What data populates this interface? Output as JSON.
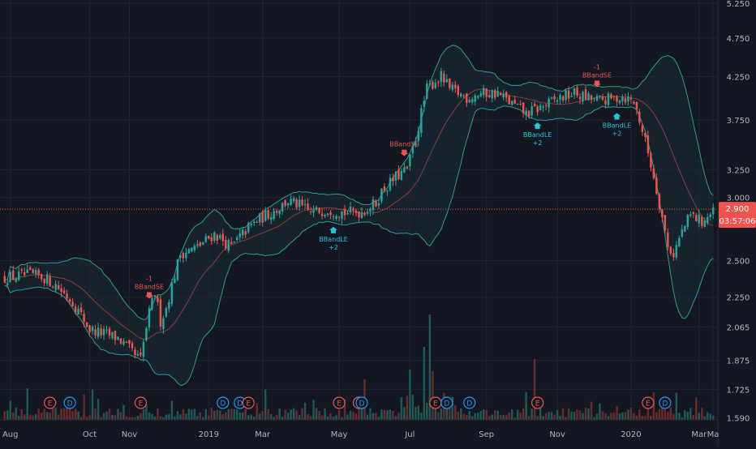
{
  "colors": {
    "background": "#131722",
    "grid": "#1f2535",
    "candle_up": "#26a69a",
    "candle_down": "#ef5350",
    "band": "#2a9d8f",
    "band_fill": "#1a2a30",
    "basis": "#8b3b3b",
    "price_line": "#ef5350",
    "label_text": "#b2b5be",
    "volume_up": "#1e5a55",
    "volume_down": "#6b2a2a",
    "earnings": "#ef5350",
    "dividend": "#2196f3",
    "signal_short": "#ef5350",
    "signal_long": "#26c6da"
  },
  "chart_data": {
    "type": "candlestick",
    "y_scale": "log",
    "ylim": [
      1.58,
      5.3
    ],
    "y_ticks": [
      "5.250",
      "4.750",
      "4.250",
      "3.750",
      "3.250",
      "3.000",
      "2.500",
      "2.250",
      "2.065",
      "1.875",
      "1.725",
      "1.590"
    ],
    "x_ticks": [
      "Aug",
      "Oct",
      "Nov",
      "2019",
      "Mar",
      "May",
      "Jul",
      "Sep",
      "Nov",
      "2020",
      "Mar",
      "Ma"
    ],
    "current_price": "2.900",
    "countdown": "03:57:06",
    "closes_knots": [
      [
        0,
        2.38
      ],
      [
        9,
        2.4
      ],
      [
        14,
        2.38
      ],
      [
        18,
        2.33
      ],
      [
        24,
        2.22
      ],
      [
        30,
        2.05
      ],
      [
        36,
        2.02
      ],
      [
        40,
        2.0
      ],
      [
        46,
        1.9
      ],
      [
        48,
        1.88
      ],
      [
        51,
        2.15
      ],
      [
        53,
        2.28
      ],
      [
        55,
        2.1
      ],
      [
        57,
        2.18
      ],
      [
        62,
        2.55
      ],
      [
        68,
        2.6
      ],
      [
        74,
        2.7
      ],
      [
        80,
        2.6
      ],
      [
        86,
        2.75
      ],
      [
        90,
        2.82
      ],
      [
        96,
        2.9
      ],
      [
        100,
        2.97
      ],
      [
        104,
        2.93
      ],
      [
        108,
        2.87
      ],
      [
        114,
        2.9
      ],
      [
        120,
        2.87
      ],
      [
        126,
        2.88
      ],
      [
        131,
        2.95
      ],
      [
        133,
        3.05
      ],
      [
        138,
        3.18
      ],
      [
        142,
        3.25
      ],
      [
        145,
        3.55
      ],
      [
        149,
        4.1
      ],
      [
        152,
        4.2
      ],
      [
        154,
        4.25
      ],
      [
        157,
        4.1
      ],
      [
        163,
        4.0
      ],
      [
        168,
        4.05
      ],
      [
        174,
        4.05
      ],
      [
        178,
        3.95
      ],
      [
        184,
        3.82
      ],
      [
        190,
        3.9
      ],
      [
        196,
        4.0
      ],
      [
        201,
        4.05
      ],
      [
        205,
        4.0
      ],
      [
        209,
        3.97
      ],
      [
        214,
        3.98
      ],
      [
        218,
        4.02
      ],
      [
        222,
        3.95
      ],
      [
        224,
        3.75
      ],
      [
        228,
        3.3
      ],
      [
        231,
        2.95
      ],
      [
        234,
        2.6
      ],
      [
        236,
        2.55
      ],
      [
        239,
        2.72
      ],
      [
        242,
        2.85
      ],
      [
        246,
        2.8
      ],
      [
        250,
        2.87
      ]
    ],
    "bars_total": 251,
    "bollinger_length": 20,
    "bollinger_stddev": 2,
    "signals": [
      {
        "type": "short",
        "bar": 51,
        "label": "BBandSE",
        "qty": "-1"
      },
      {
        "type": "long",
        "bar": 116,
        "label": "BBandLE",
        "qty": "+2"
      },
      {
        "type": "short",
        "bar": 141,
        "label": "BBandSE",
        "qty": ""
      },
      {
        "type": "long",
        "bar": 188,
        "label": "BBandLE",
        "qty": "+2"
      },
      {
        "type": "short",
        "bar": 209,
        "label": "BBandSE",
        "qty": "-1"
      },
      {
        "type": "long",
        "bar": 216,
        "label": "BBandLE",
        "qty": "+2"
      }
    ],
    "events": [
      {
        "kind": "E",
        "bar": 16
      },
      {
        "kind": "D",
        "bar": 23
      },
      {
        "kind": "E",
        "bar": 48
      },
      {
        "kind": "D",
        "bar": 77
      },
      {
        "kind": "D",
        "bar": 83
      },
      {
        "kind": "E",
        "bar": 86
      },
      {
        "kind": "E",
        "bar": 118
      },
      {
        "kind": "E",
        "bar": 125
      },
      {
        "kind": "D",
        "bar": 126
      },
      {
        "kind": "E",
        "bar": 152
      },
      {
        "kind": "D",
        "bar": 156
      },
      {
        "kind": "D",
        "bar": 164
      },
      {
        "kind": "E",
        "bar": 188
      },
      {
        "kind": "E",
        "bar": 227
      },
      {
        "kind": "D",
        "bar": 233
      }
    ]
  }
}
